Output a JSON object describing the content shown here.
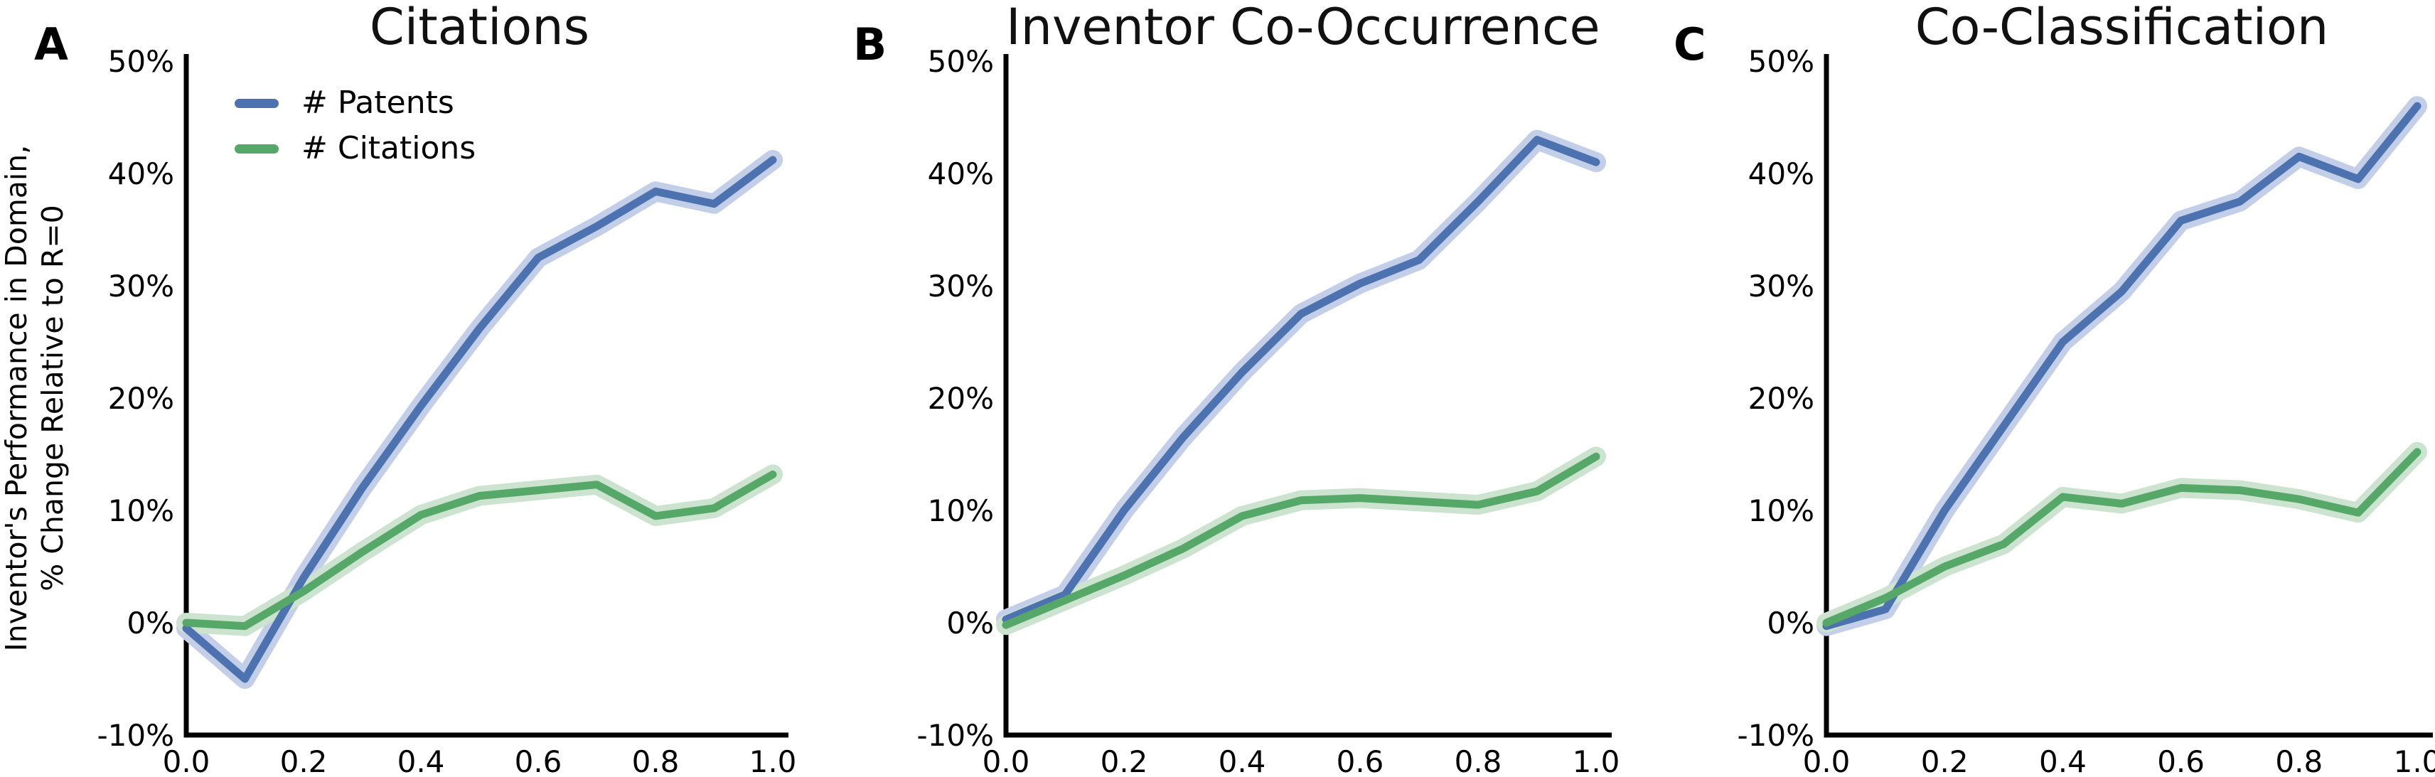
{
  "figure": {
    "background": "#ffffff",
    "text_color": "#000000",
    "spine_color": "#000000"
  },
  "axes": {
    "ylabel_line1": "Inventor's Performance in Domain,",
    "ylabel_line2": "% Change Relative to R=0",
    "ylim": [
      -10,
      50
    ],
    "xlim": [
      0,
      1
    ],
    "ytick_values": [
      50,
      40,
      30,
      20,
      10,
      0,
      -10
    ],
    "ytick_labels": [
      "50%",
      "40%",
      "30%",
      "20%",
      "10%",
      "0%",
      "-10%"
    ],
    "xtick_values": [
      0.0,
      0.2,
      0.4,
      0.6,
      0.8,
      1.0
    ],
    "xtick_labels": [
      "0.0",
      "0.2",
      "0.4",
      "0.6",
      "0.8",
      "1.0"
    ],
    "grid": false
  },
  "legend": {
    "position": "upper left of panel A",
    "items": [
      {
        "label": "# Patents",
        "color": "#4C72B0"
      },
      {
        "label": "# Citations",
        "color": "#55A868"
      }
    ]
  },
  "colors": {
    "patents_line": "#4C72B0",
    "patents_band": "#C3CFE8",
    "citations_line": "#55A868",
    "citations_band": "#CBE3CF"
  },
  "chart_data": [
    {
      "panel_label": "A",
      "title": "Citations",
      "type": "line",
      "x": [
        0.0,
        0.1,
        0.2,
        0.3,
        0.4,
        0.5,
        0.6,
        0.7,
        0.8,
        0.9,
        1.0
      ],
      "series": [
        {
          "name": "# Patents",
          "color": "#4C72B0",
          "band_color": "#C3CFE8",
          "values": [
            -0.5,
            -5.0,
            4.0,
            12.0,
            19.3,
            26.2,
            32.5,
            35.3,
            38.4,
            37.3,
            41.2
          ]
        },
        {
          "name": "# Citations",
          "color": "#55A868",
          "band_color": "#CBE3CF",
          "values": [
            0.0,
            -0.3,
            2.8,
            6.3,
            9.6,
            11.3,
            11.8,
            12.3,
            9.5,
            10.2,
            13.2
          ]
        }
      ]
    },
    {
      "panel_label": "B",
      "title": "Inventor Co-Occurrence",
      "type": "line",
      "x": [
        0.0,
        0.1,
        0.2,
        0.3,
        0.4,
        0.5,
        0.6,
        0.7,
        0.8,
        0.9,
        1.0
      ],
      "series": [
        {
          "name": "# Patents",
          "color": "#4C72B0",
          "band_color": "#C3CFE8",
          "values": [
            0.3,
            2.5,
            10.0,
            16.5,
            22.3,
            27.5,
            30.2,
            32.3,
            37.5,
            43.0,
            41.0
          ]
        },
        {
          "name": "# Citations",
          "color": "#55A868",
          "band_color": "#CBE3CF",
          "values": [
            -0.2,
            2.0,
            4.2,
            6.6,
            9.5,
            10.9,
            11.1,
            10.8,
            10.5,
            11.7,
            14.8
          ]
        }
      ]
    },
    {
      "panel_label": "C",
      "title": "Co-Classification",
      "type": "line",
      "x": [
        0.0,
        0.1,
        0.2,
        0.3,
        0.4,
        0.5,
        0.6,
        0.7,
        0.8,
        0.9,
        1.0
      ],
      "series": [
        {
          "name": "# Patents",
          "color": "#4C72B0",
          "band_color": "#C3CFE8",
          "values": [
            -0.3,
            1.2,
            10.0,
            17.5,
            25.0,
            29.5,
            35.8,
            37.5,
            41.5,
            39.5,
            46.0
          ]
        },
        {
          "name": "# Citations",
          "color": "#55A868",
          "band_color": "#CBE3CF",
          "values": [
            0.0,
            2.2,
            5.0,
            7.0,
            11.2,
            10.6,
            12.0,
            11.8,
            11.0,
            9.8,
            15.2
          ]
        }
      ]
    }
  ]
}
